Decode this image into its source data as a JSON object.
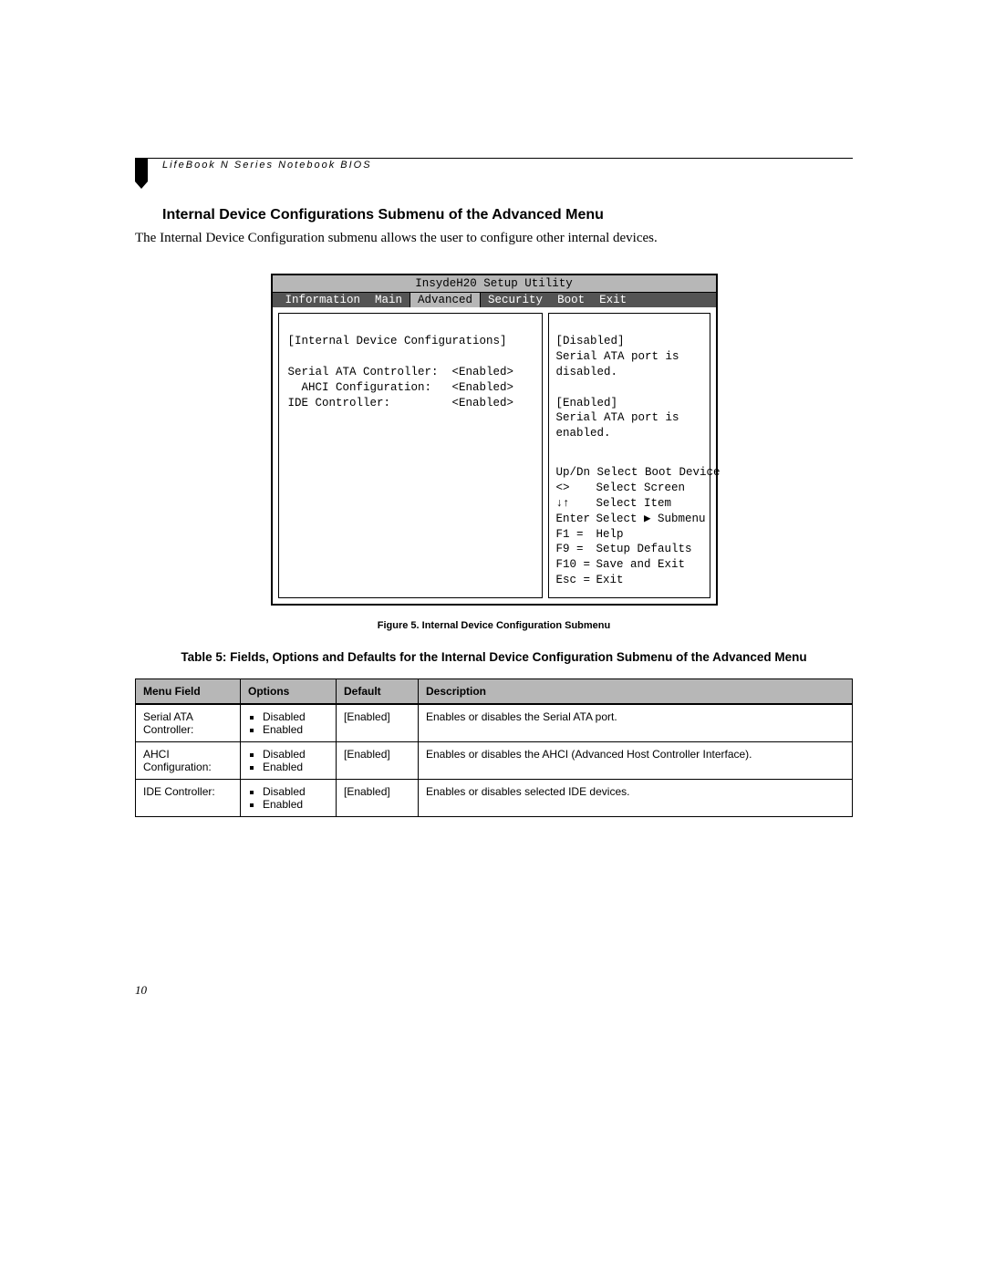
{
  "header": "LifeBook N Series Notebook BIOS",
  "section_title": "Internal Device Configurations Submenu of the Advanced Menu",
  "intro": "The Internal Device Configuration submenu allows the user to configure other internal devices.",
  "bios": {
    "title": "InsydeH20 Setup Utility",
    "tabs": [
      "Information",
      "Main",
      "Advanced",
      "Security",
      "Boot",
      "Exit"
    ],
    "active_tab_index": 2,
    "left_panel": {
      "group_label": "[Internal Device Configurations]",
      "items": [
        {
          "label": "Serial ATA Controller:",
          "value": "<Enabled>"
        },
        {
          "label": "  AHCI Configuration:",
          "value": "<Enabled>"
        },
        {
          "label": "IDE Controller:",
          "value": "<Enabled>"
        }
      ]
    },
    "right_panel": {
      "help_text": "[Disabled]\nSerial ATA port is disabled.\n\n[Enabled]\nSerial ATA port is enabled.",
      "keys": [
        {
          "key": "Up/Dn",
          "action": "Select Boot Device"
        },
        {
          "key": "<>",
          "action": "Select Screen"
        },
        {
          "key": "↓↑",
          "action": "Select Item"
        },
        {
          "key": "Enter",
          "action": "Select ▶ Submenu"
        },
        {
          "key": "F1  =",
          "action": "Help"
        },
        {
          "key": "F9  =",
          "action": "Setup Defaults"
        },
        {
          "key": "F10 =",
          "action": "Save and Exit"
        },
        {
          "key": "Esc =",
          "action": "Exit"
        }
      ]
    }
  },
  "figure_caption": "Figure 5.  Internal Device Configuration Submenu",
  "table_caption": "Table 5: Fields, Options and Defaults for the Internal Device Configuration Submenu of the Advanced Menu",
  "table": {
    "columns": [
      "Menu Field",
      "Options",
      "Default",
      "Description"
    ],
    "rows": [
      {
        "menu_field": "Serial ATA Controller:",
        "options": [
          "Disabled",
          "Enabled"
        ],
        "default": "[Enabled]",
        "description": "Enables or disables the Serial ATA port."
      },
      {
        "menu_field": "AHCI Configuration:",
        "options": [
          "Disabled",
          "Enabled"
        ],
        "default": "[Enabled]",
        "description": "Enables or disables the AHCI (Advanced Host Controller Interface)."
      },
      {
        "menu_field": "IDE Controller:",
        "options": [
          "Disabled",
          "Enabled"
        ],
        "default": "[Enabled]",
        "description": "Enables or disables selected IDE devices."
      }
    ]
  },
  "page_number": "10",
  "colors": {
    "gray_header": "#b7b7b7",
    "menubar_bg": "#545454",
    "text": "#000000",
    "background": "#ffffff"
  }
}
